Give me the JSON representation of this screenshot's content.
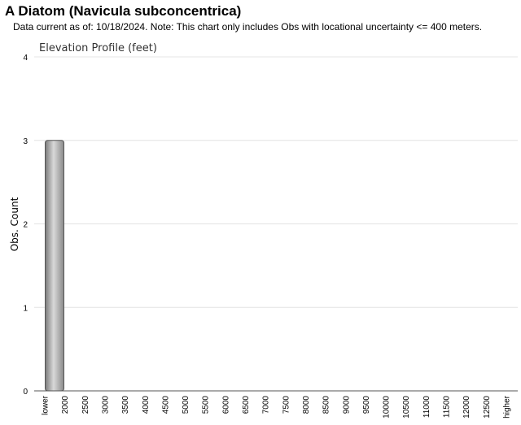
{
  "page": {
    "species_title": "A Diatom   (Navicula subconcentrica)",
    "subtitle": "Data current as of: 10/18/2024.    Note: This chart only includes Obs with locational uncertainty <= 400 meters."
  },
  "chart_data": {
    "type": "bar",
    "title": "Elevation Profile (feet)",
    "xlabel": "",
    "ylabel": "Obs. Count",
    "categories": [
      "lower",
      "2000",
      "2500",
      "3000",
      "3500",
      "4000",
      "4500",
      "5000",
      "5500",
      "6000",
      "6500",
      "7000",
      "7500",
      "8000",
      "8500",
      "9000",
      "9500",
      "10000",
      "10500",
      "11000",
      "11500",
      "12000",
      "12500",
      "higher"
    ],
    "values": [
      3,
      0,
      0,
      0,
      0,
      0,
      0,
      0,
      0,
      0,
      0,
      0,
      0,
      0,
      0,
      0,
      0,
      0,
      0,
      0,
      0,
      0,
      0,
      0
    ],
    "ylim": [
      0,
      4
    ],
    "yticks": [
      "0",
      "1",
      "2",
      "3",
      "4"
    ],
    "grid": true,
    "bar_color": "#9a9a9a",
    "grid_color": "#e4e4e4"
  }
}
